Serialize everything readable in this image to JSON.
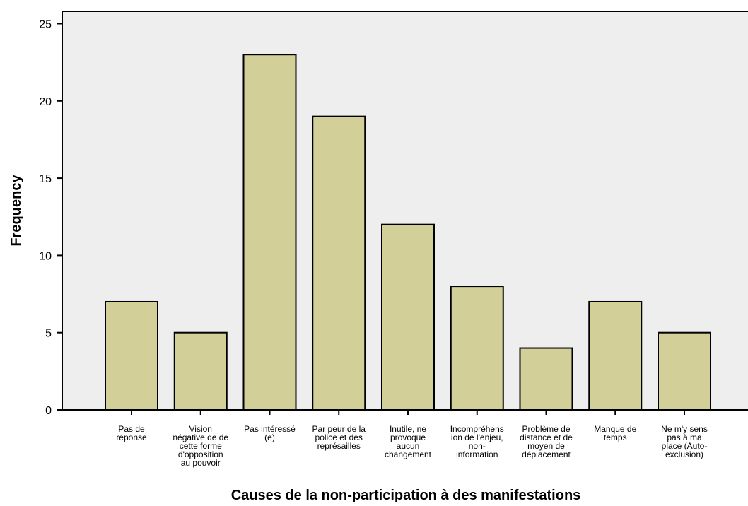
{
  "chart_data": {
    "type": "bar",
    "xlabel": "Causes de la non-participation à des manifestations",
    "ylabel": "Frequency",
    "ylim": [
      0,
      25.8
    ],
    "yticks": [
      0,
      5,
      10,
      15,
      20,
      25
    ],
    "grid": false,
    "colors": {
      "plot_background": "#eeeeee",
      "bar_fill": "#d3cf98",
      "bar_stroke": "#000000"
    },
    "categories": [
      [
        "Pas de",
        "réponse"
      ],
      [
        "Vision",
        "négative de de",
        "cette forme",
        "d'opposition",
        "au pouvoir"
      ],
      [
        "Pas intéressé",
        "(e)"
      ],
      [
        "Par peur de la",
        "police et des",
        "représailles"
      ],
      [
        "Inutile, ne",
        "provoque",
        "aucun",
        "changement"
      ],
      [
        "Incompréhens",
        "ion de l'enjeu,",
        "non-",
        "information"
      ],
      [
        "Problème de",
        "distance et de",
        "moyen de",
        "déplacement"
      ],
      [
        "Manque de",
        "temps"
      ],
      [
        "Ne m'y sens",
        "pas à ma",
        "place (Auto-",
        "exclusion)"
      ]
    ],
    "values": [
      7,
      5,
      23,
      19,
      12,
      8,
      4,
      7,
      5
    ]
  }
}
